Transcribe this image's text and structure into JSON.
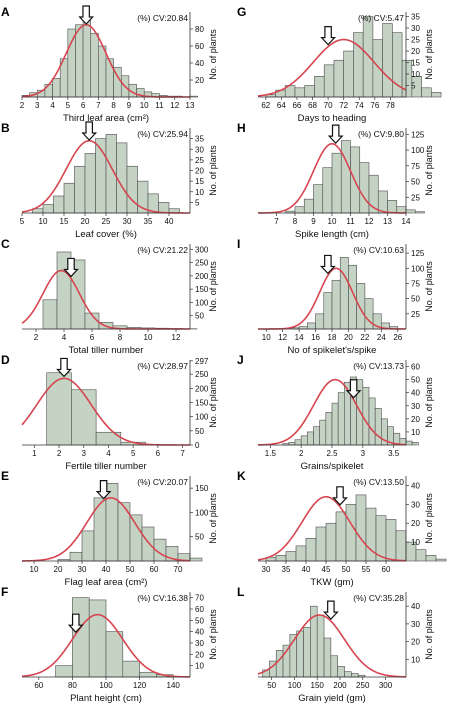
{
  "chart_data": [
    {
      "panel": "A",
      "type": "bar",
      "title": "",
      "xlabel": "Third leaf area (cm²)",
      "ylabel": "No. of plants",
      "cv_label": "(%) CV:20.84",
      "bin_start": 2,
      "bin_width": 0.5,
      "values": [
        2,
        5,
        8,
        15,
        22,
        45,
        80,
        85,
        90,
        75,
        60,
        45,
        35,
        25,
        15,
        10,
        6,
        4,
        2,
        1,
        1,
        0,
        1
      ],
      "curve": {
        "mean": 6.2,
        "sd": 1.3,
        "peak": 85
      },
      "arrow_x": 6.2,
      "xlim": [
        2,
        13
      ],
      "xticks": [
        2,
        3,
        4,
        5,
        6,
        7,
        8,
        9,
        10,
        11,
        12,
        13
      ],
      "ylim": [
        0,
        100
      ],
      "yticks": [
        20,
        40,
        60,
        80
      ]
    },
    {
      "panel": "B",
      "type": "bar",
      "title": "",
      "xlabel": "Leaf cover (%)",
      "ylabel": "No. of plants",
      "cv_label": "(%) CV:25.94",
      "bin_start": 7.5,
      "bin_width": 2.5,
      "values": [
        2,
        4,
        8,
        14,
        22,
        28,
        35,
        37,
        33,
        22,
        15,
        9,
        5,
        2
      ],
      "curve": {
        "mean": 21,
        "sd": 5.5,
        "peak": 34
      },
      "arrow_x": 21,
      "xlim": [
        5,
        45
      ],
      "xticks": [
        5,
        10,
        15,
        20,
        25,
        30,
        35,
        40
      ],
      "ylim": [
        0,
        40
      ],
      "yticks": [
        5,
        10,
        15,
        20,
        25,
        30,
        35
      ]
    },
    {
      "panel": "C",
      "type": "bar",
      "title": "",
      "xlabel": "Total tiller number",
      "ylabel": "No. of plants",
      "cv_label": "(%) CV:21.22",
      "bin_start": 2.5,
      "bin_width": 1,
      "values": [
        110,
        290,
        260,
        60,
        25,
        12,
        6,
        4,
        3,
        2,
        1
      ],
      "curve": {
        "mean": 3.8,
        "sd": 1.3,
        "peak": 220
      },
      "arrow_x": 4.5,
      "xlim": [
        1,
        13
      ],
      "xticks": [
        2,
        4,
        6,
        8,
        10,
        12
      ],
      "ylim": [
        0,
        320
      ],
      "yticks": [
        50,
        100,
        150,
        200,
        250,
        300
      ]
    },
    {
      "panel": "D",
      "type": "bar",
      "title": "",
      "xlabel": "Fertile tiller number",
      "ylabel": "No. of plants",
      "cv_label": "(%) CV:28.97",
      "bin_start": 1.5,
      "bin_width": 1,
      "values": [
        255,
        195,
        45,
        10
      ],
      "curve": {
        "mean": 2.2,
        "sd": 1.1,
        "peak": 235
      },
      "arrow_x": 2.2,
      "xlim": [
        0.5,
        7.3
      ],
      "xticks": [
        1,
        2,
        3,
        4,
        5,
        6,
        7
      ],
      "ylim": [
        0,
        300
      ],
      "yticks": [
        0,
        50,
        100,
        150,
        200,
        250,
        297
      ]
    },
    {
      "panel": "E",
      "type": "bar",
      "title": "",
      "xlabel": "Flag leaf area (cm²)",
      "ylabel": "No. of plants",
      "cv_label": "(%) CV:20.07",
      "bin_start": 20,
      "bin_width": 5,
      "values": [
        3,
        18,
        62,
        130,
        160,
        120,
        95,
        70,
        45,
        30,
        15,
        6
      ],
      "curve": {
        "mean": 42,
        "sd": 10,
        "peak": 130
      },
      "arrow_x": 39,
      "xlim": [
        5,
        75
      ],
      "xticks": [
        10,
        20,
        30,
        40,
        50,
        60,
        70
      ],
      "ylim": [
        0,
        175
      ],
      "yticks": [
        50,
        100,
        150
      ]
    },
    {
      "panel": "F",
      "type": "bar",
      "title": "",
      "xlabel": "Plant height (cm)",
      "ylabel": "No. of plants",
      "cv_label": "(%) CV:16.38",
      "bin_start": 70,
      "bin_width": 10,
      "values": [
        10,
        70,
        68,
        40,
        14,
        4,
        2
      ],
      "curve": {
        "mean": 95,
        "sd": 15,
        "peak": 55
      },
      "arrow_x": 82,
      "xlim": [
        50,
        150
      ],
      "xticks": [
        60,
        80,
        100,
        120,
        140
      ],
      "ylim": [
        0,
        75
      ],
      "yticks": [
        10,
        20,
        30,
        40,
        50,
        60,
        70
      ]
    },
    {
      "panel": "G",
      "type": "bar",
      "title": "",
      "xlabel": "Days to heading",
      "ylabel": "No. of plants",
      "cv_label": "(%) CV:5.47",
      "bin_start": 62,
      "bin_width": 1.25,
      "values": [
        1,
        3,
        5,
        4,
        5,
        9,
        14,
        16,
        20,
        28,
        35,
        25,
        32,
        28,
        16,
        9,
        4,
        2
      ],
      "curve": {
        "mean": 72,
        "sd": 3.9,
        "peak": 25
      },
      "arrow_x": 70,
      "xlim": [
        61,
        80
      ],
      "xticks": [
        62,
        64,
        66,
        68,
        70,
        72,
        74,
        76,
        78
      ],
      "ylim": [
        0,
        37
      ],
      "yticks": [
        5,
        10,
        15,
        20,
        25,
        30,
        35
      ]
    },
    {
      "panel": "H",
      "type": "bar",
      "title": "",
      "xlabel": "Spike length (cm)",
      "ylabel": "No. of plants",
      "cv_label": "(%) CV:9.80",
      "bin_start": 7.5,
      "bin_width": 0.5,
      "values": [
        3,
        10,
        22,
        45,
        72,
        95,
        115,
        105,
        80,
        60,
        35,
        20,
        10,
        5,
        2
      ],
      "curve": {
        "mean": 10,
        "sd": 1,
        "peak": 110
      },
      "arrow_x": 10.2,
      "xlim": [
        6,
        14
      ],
      "xticks": [
        7,
        8,
        9,
        10,
        11,
        12,
        13,
        14
      ],
      "ylim": [
        0,
        135
      ],
      "yticks": [
        25,
        50,
        75,
        100,
        125
      ]
    },
    {
      "panel": "I",
      "type": "bar",
      "title": "",
      "xlabel": "No of spikelet's/spike",
      "ylabel": "No. of plants",
      "cv_label": "(%) CV:10.63",
      "bin_start": 13,
      "bin_width": 1,
      "values": [
        2,
        4,
        10,
        25,
        60,
        80,
        118,
        105,
        75,
        50,
        25,
        10,
        4
      ],
      "curve": {
        "mean": 18.5,
        "sd": 2,
        "peak": 100
      },
      "arrow_x": 17.5,
      "xlim": [
        9,
        27
      ],
      "xticks": [
        10,
        12,
        14,
        16,
        18,
        20,
        22,
        24,
        26
      ],
      "ylim": [
        0,
        140
      ],
      "yticks": [
        25,
        50,
        75,
        100,
        125
      ]
    },
    {
      "panel": "J",
      "type": "bar",
      "title": "",
      "xlabel": "Grains/spikelet",
      "ylabel": "No. of plants",
      "cv_label": "(%) CV:13.73",
      "bin_start": 1.7,
      "bin_width": 0.1,
      "values": [
        1,
        2,
        4,
        7,
        10,
        14,
        19,
        25,
        32,
        40,
        48,
        52,
        50,
        44,
        36,
        28,
        20,
        14,
        9,
        5,
        3,
        2
      ],
      "curve": {
        "mean": 2.55,
        "sd": 0.35,
        "peak": 50
      },
      "arrow_x": 2.85,
      "xlim": [
        1.3,
        3.7
      ],
      "xticks": [
        1.5,
        2,
        2.5,
        3,
        3.5
      ],
      "ylim": [
        0,
        65
      ],
      "yticks": [
        10,
        20,
        30,
        40,
        50,
        60
      ]
    },
    {
      "panel": "K",
      "type": "bar",
      "title": "",
      "xlabel": "TKW (gm)",
      "ylabel": "No. of plants",
      "cv_label": "(%) CV:13.50",
      "bin_start": 30,
      "bin_width": 2.5,
      "values": [
        2,
        3,
        5,
        8,
        12,
        18,
        20,
        26,
        30,
        35,
        28,
        24,
        22,
        16,
        10,
        6,
        3,
        1
      ],
      "curve": {
        "mean": 45,
        "sd": 6,
        "peak": 34
      },
      "arrow_x": 48.5,
      "xlim": [
        28,
        65
      ],
      "xticks": [
        30,
        35,
        40,
        45,
        50,
        55,
        60
      ],
      "ylim": [
        0,
        45
      ],
      "yticks": [
        10,
        20,
        30,
        40
      ]
    },
    {
      "panel": "L",
      "type": "bar",
      "title": "",
      "xlabel": "Grain yield (gm)",
      "ylabel": "No. of plants",
      "cv_label": "(%) CV:35.28",
      "bin_start": 30,
      "bin_width": 15,
      "values": [
        4,
        9,
        15,
        18,
        24,
        26,
        28,
        40,
        35,
        22,
        12,
        6,
        3,
        2,
        1
      ],
      "curve": {
        "mean": 155,
        "sd": 55,
        "peak": 35
      },
      "arrow_x": 180,
      "xlim": [
        20,
        345
      ],
      "xticks": [
        50,
        100,
        150,
        200,
        250,
        300
      ],
      "ylim": [
        0,
        48
      ],
      "yticks": [
        10,
        20,
        30,
        40
      ]
    }
  ]
}
